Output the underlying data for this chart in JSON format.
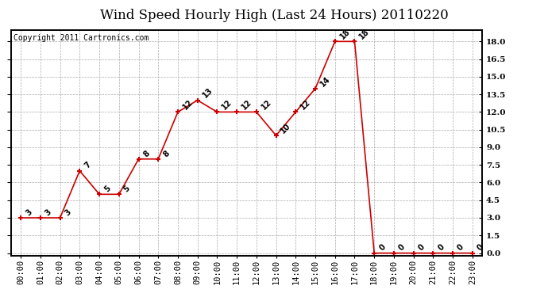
{
  "hours": [
    "00:00",
    "01:00",
    "02:00",
    "03:00",
    "04:00",
    "05:00",
    "06:00",
    "07:00",
    "08:00",
    "09:00",
    "10:00",
    "11:00",
    "12:00",
    "13:00",
    "14:00",
    "15:00",
    "16:00",
    "17:00",
    "18:00",
    "19:00",
    "20:00",
    "21:00",
    "22:00",
    "23:00"
  ],
  "values": [
    3,
    3,
    3,
    7,
    5,
    5,
    8,
    8,
    12,
    13,
    12,
    12,
    12,
    10,
    12,
    14,
    18,
    18,
    0,
    0,
    0,
    0,
    0,
    0
  ],
  "title": "Wind Speed Hourly High (Last 24 Hours) 20110220",
  "copyright": "Copyright 2011 Cartronics.com",
  "line_color": "#cc0000",
  "marker_color": "#cc0000",
  "bg_color": "#ffffff",
  "plot_bg_color": "#ffffff",
  "grid_color": "#aaaaaa",
  "ylim": [
    -0.2,
    19.0
  ],
  "yticks": [
    0.0,
    1.5,
    3.0,
    4.5,
    6.0,
    7.5,
    9.0,
    10.5,
    12.0,
    13.5,
    15.0,
    16.5,
    18.0
  ],
  "ytick_labels": [
    "0.0",
    "1.5",
    "3.0",
    "4.5",
    "6.0",
    "7.5",
    "9.0",
    "10.5",
    "12.0",
    "13.5",
    "15.0",
    "16.5",
    "18.0"
  ],
  "title_fontsize": 12,
  "label_fontsize": 7.5,
  "annotation_fontsize": 7,
  "copyright_fontsize": 7
}
